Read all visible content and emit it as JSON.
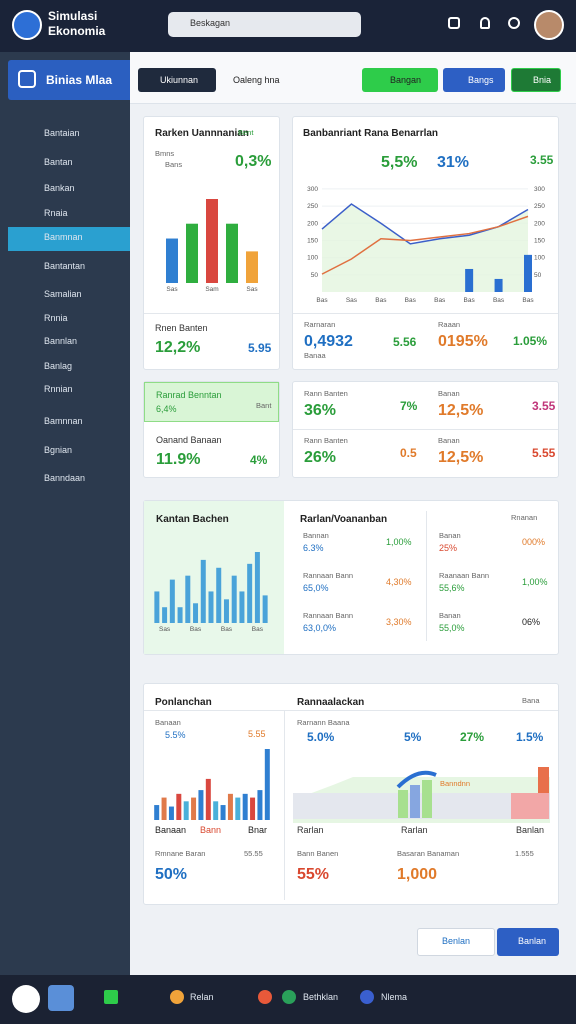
{
  "header": {
    "brand": [
      "Simulasi",
      "Ekonomia"
    ],
    "search": "Beskagan"
  },
  "sidebar": {
    "title": "Binias Mlaa",
    "active": 4,
    "items": [
      "Bantaian",
      "Bantan",
      "Bankan",
      "Rnaia",
      "Banmnan",
      "Bantantan",
      "Samalian",
      "Rnnia",
      "Bannlan",
      "Banlag",
      "Rnnian",
      "Bamnnan",
      "Bgnian",
      "Banndaan"
    ]
  },
  "toolbar": {
    "tabs": [
      "Ukiunnan",
      "Oaleng hna"
    ],
    "buttons": [
      "Bangan",
      "Bangs",
      "Bnia"
    ]
  },
  "cards": [
    {
      "title": "Rarken Uannnanian",
      "badge": "Bent",
      "legend": "Bmns",
      "sub": "Bans",
      "kpi": "0,3%",
      "chart": {
        "type": "bar",
        "categories": [
          "Sas",
          null,
          "Sam",
          null,
          "Sas"
        ],
        "values": [
          45,
          60,
          85,
          60,
          32
        ],
        "colors": [
          "#2f7fd1",
          "#2fae3f",
          "#d9473f",
          "#2fae3f",
          "#f0a33a"
        ]
      },
      "foot_label": "Rnen Banten",
      "foot_value": "12,2%",
      "foot_value2": "5.95"
    },
    {
      "title": "Banbanriant Rana Benarrlan",
      "kpis": [
        "5,5%",
        "31%",
        "3.55"
      ],
      "chart": {
        "type": "line",
        "categories": [
          "Bas",
          "Sas",
          "Bas",
          "Bas",
          "Bas",
          "Bas",
          "Bas",
          "Bas"
        ],
        "ylim": [
          0,
          320
        ],
        "yticks": [
          300,
          250,
          200,
          150,
          100,
          50
        ],
        "series": [
          {
            "color": "#3b5fc9",
            "values": [
              183,
              256,
              200,
              140,
              155,
              165,
              190,
              240
            ]
          },
          {
            "color": "#e07040",
            "values": [
              52,
              96,
              155,
              150,
              160,
              170,
              190,
              220
            ]
          },
          {
            "type": "bar",
            "color": "#2a6fd1",
            "values": [
              null,
              null,
              null,
              null,
              null,
              67,
              38,
              108
            ]
          }
        ]
      },
      "stats": [
        {
          "label": "Rarnaran",
          "value": "0,4932",
          "sub": "Banaa"
        },
        {
          "value": "5.56"
        },
        {
          "label": "Raaan",
          "value": "0195%"
        },
        {
          "value": "1.05%"
        }
      ]
    },
    {
      "title": "Ranrad Benntan",
      "badge": "Bant",
      "value": "6,4%",
      "label2": "Oanand Banaan",
      "value2": "11.9%",
      "value3": "4%"
    },
    {
      "stats": [
        {
          "label": "Rann Banten",
          "value": "36%",
          "side": "7%"
        },
        {
          "label": "Banan",
          "value": "12,5%",
          "side": "3.55"
        },
        {
          "label": "Rann Banten",
          "value": "26%",
          "side": "0.5"
        },
        {
          "label": "Banan",
          "value": "12,5%",
          "side": "5.55"
        }
      ]
    },
    {
      "title": "Kantan Bachen",
      "chart": {
        "type": "bar",
        "categories": [
          null,
          "Sas",
          null,
          null,
          null,
          "Bas",
          null,
          null,
          null,
          "Bas",
          null,
          null,
          null,
          "Bas",
          null
        ],
        "values": [
          40,
          20,
          55,
          20,
          60,
          25,
          80,
          40,
          70,
          30,
          60,
          40,
          75,
          90,
          35
        ],
        "color": "#4aa3d9"
      },
      "table_title": "Rarlan/Voananban",
      "filter": "Rnanan",
      "rows": [
        {
          "l1": "Bannan",
          "v1": "6.3%",
          "v2": "1,00%",
          "l3": "Banan",
          "v3": "25%",
          "v4": "000%"
        },
        {
          "l1": "Rannaan Bann",
          "v1": "65,0%",
          "v2": "4,30%",
          "l3": "Raanaan Bann",
          "v3": "55,6%",
          "v4": "1,00%"
        },
        {
          "l1": "Rannaan Bann",
          "v1": "63,0,0%",
          "v2": "3,30%",
          "l3": "Banan",
          "v3": "55,0%",
          "v4": "06%"
        }
      ]
    },
    {
      "title": "Ponlanchan",
      "sub": "Banaan",
      "kpi": "5.5%",
      "kpi_side": "5.55",
      "chart": {
        "type": "bar",
        "values": [
          20,
          30,
          18,
          35,
          25,
          30,
          40,
          55,
          25,
          20,
          35,
          30,
          35,
          30,
          40,
          95
        ],
        "colors": [
          "#2f7fd1",
          "#e07a4a",
          "#2f7fd1",
          "#d9473f",
          "#4ab0d9",
          "#e07a4a",
          "#2f7fd1",
          "#d9473f",
          "#4ab0d9",
          "#2f7fd1",
          "#e07a4a",
          "#4ab0d9",
          "#2f7fd1",
          "#d9473f",
          "#2f7fd1",
          "#2f7fd1"
        ]
      },
      "foot_labels": [
        "Banaan",
        "Bann",
        "Bnar"
      ],
      "foot_label": "Rmnane Baran",
      "foot_side": "55.55",
      "foot_value": "50%",
      "right": {
        "title": "Rannaalackan",
        "badge": "Bana",
        "sub": "Rarnann Baana",
        "kpis": [
          "5.0%",
          "5%",
          "27%",
          "1.5%"
        ],
        "area_label": "Banndnn",
        "labels": [
          "Rarlan",
          "Rarlan",
          "Banlan"
        ],
        "bottom": [
          "Bann Banen",
          "Basaran Banaman",
          "1.555"
        ],
        "values": [
          "55%",
          "1,000"
        ]
      }
    }
  ],
  "footer_buttons": [
    "Benlan",
    "Banlan"
  ],
  "taskbar": [
    "Relan",
    "Bethklan",
    "Nlema"
  ]
}
